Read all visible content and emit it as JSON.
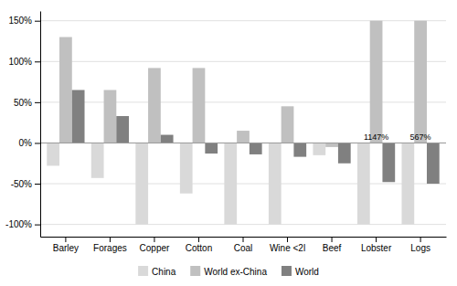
{
  "chart_data": {
    "type": "bar",
    "categories": [
      "Barley",
      "Forages",
      "Copper",
      "Cotton",
      "Coal",
      "Wine <2l",
      "Beef",
      "Lobster",
      "Logs"
    ],
    "series": [
      {
        "name": "China",
        "color": "#d9d9d9",
        "values": [
          -28,
          -43,
          -100,
          -62,
          -100,
          -100,
          -15,
          -100,
          -100
        ]
      },
      {
        "name": "World ex-China",
        "color": "#c0c0c0",
        "values": [
          130,
          65,
          92,
          92,
          15,
          45,
          -5,
          150,
          150
        ]
      },
      {
        "name": "World",
        "color": "#808080",
        "values": [
          65,
          33,
          10,
          -13,
          -14,
          -17,
          -25,
          -48,
          -50
        ]
      }
    ],
    "annotations": [
      {
        "category": "Lobster",
        "text": "1147%"
      },
      {
        "category": "Logs",
        "text": "567%"
      }
    ],
    "ylim": [
      -115,
      162
    ],
    "yticks": [
      {
        "value": -100,
        "label": "-100%"
      },
      {
        "value": -50,
        "label": "-50%"
      },
      {
        "value": 0,
        "label": "0%"
      },
      {
        "value": 50,
        "label": "50%"
      },
      {
        "value": 100,
        "label": "100%"
      },
      {
        "value": 150,
        "label": "150%"
      }
    ],
    "grid": true,
    "legend": "bottom"
  }
}
